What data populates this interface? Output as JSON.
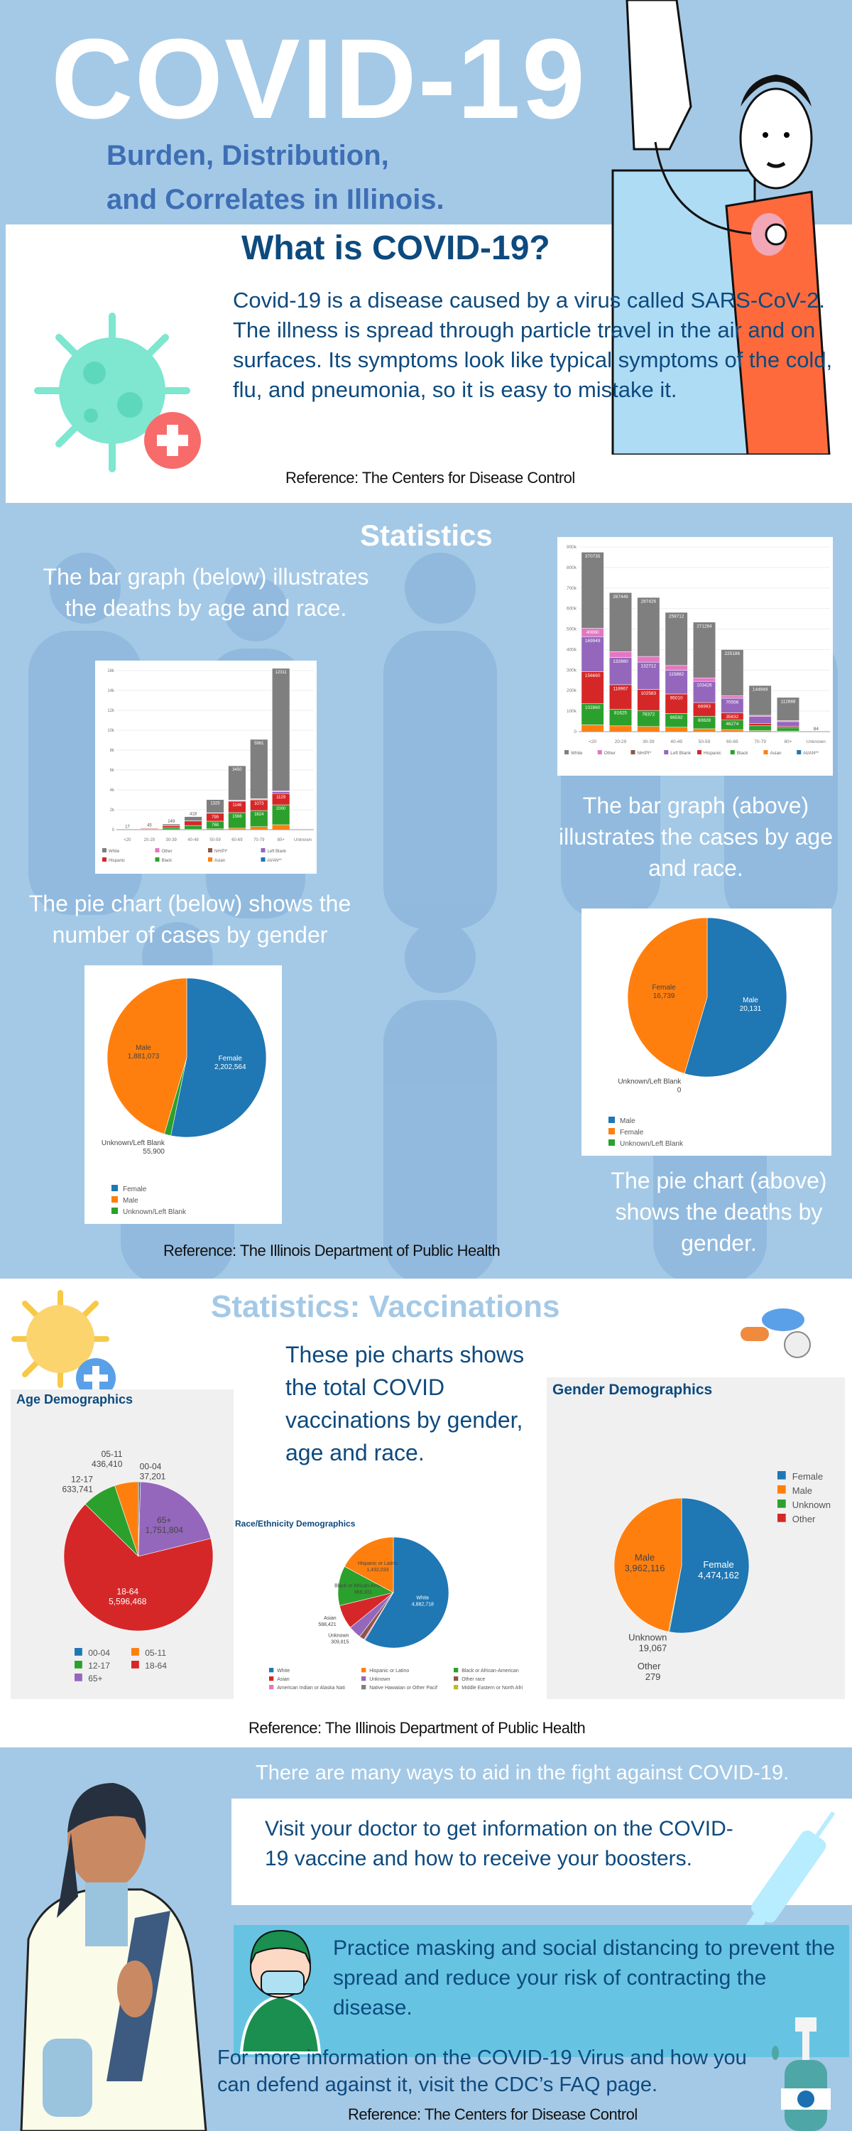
{
  "header": {
    "title": "COVID-19",
    "subtitle_lines": [
      "Burden, Distribution,",
      "and Correlates in Illinois."
    ]
  },
  "what": {
    "heading": "What is COVID-19?",
    "paragraph": "Covid-19 is a disease caused by a virus called SARS-CoV-2.  The illness is spread through particle travel in the air and on surfaces. Its symptoms look like typical symptoms of the cold, flu, and pneumonia, so it is easy to mistake it.",
    "reference": "Reference: The Centers for Disease Control"
  },
  "stats": {
    "heading": "Statistics",
    "deaths_bar_caption": "The bar graph (below) illustrates the deaths by age and race.",
    "cases_bar_caption": "The bar graph (above) illustrates the cases by age and race.",
    "cases_pie_caption": "The pie chart (below) shows the number of cases by gender",
    "deaths_pie_caption": "The pie chart (above) shows the deaths by gender.",
    "reference": "Reference: The Illinois Department of Public Health"
  },
  "vacc": {
    "heading": "Statistics: Vaccinations",
    "caption": "These pie charts shows the total COVID vaccinations by gender, age and race.",
    "reference": "Reference: The Illinois Department of Public Health"
  },
  "aid": {
    "intro": "There are many ways to aid in the fight against COVID-19.",
    "visit": "Visit your doctor to get information on the COVID-19 vaccine and how to receive your boosters.",
    "masking": "Practice masking and social distancing to prevent the spread and reduce your risk of contracting the disease.",
    "more_info": "For more information on the COVID-19 Virus and how you can defend against it, visit the CDC’s FAQ page.",
    "reference": "Reference: The Centers for Disease Control"
  },
  "colors": {
    "background": "#a4c9e6",
    "navy": "#0d4a7e",
    "subtitle_blue": "#3e6eb4",
    "cyan_box": "#66c4e2"
  },
  "icons": [
    "doctor-patient-illustration",
    "virus-icon",
    "people-silhouettes",
    "yellow-virus-icon",
    "pills-icon",
    "doctor-woman-illustration",
    "syringe-icon",
    "masked-nurse-icon",
    "hand-sanitizer-icon"
  ],
  "chart_data": [
    {
      "id": "cases_bar",
      "type": "bar",
      "stacked": true,
      "title": "",
      "categories": [
        "<20",
        "20-29",
        "30-39",
        "40-49",
        "50-59",
        "60-69",
        "70-79",
        "80+",
        "Unknown"
      ],
      "ylim": [
        0,
        900000
      ],
      "yticks": [
        "0",
        "100k",
        "200k",
        "300k",
        "400k",
        "500k",
        "600k",
        "700k",
        "800k",
        "900k"
      ],
      "grid": true,
      "legend": "bottom",
      "series": [
        {
          "name": "Asian",
          "color": "#ff7f0e",
          "values": [
            33209,
            28271,
            24915,
            21963,
            14000,
            10000,
            5000,
            3000,
            0
          ]
        },
        {
          "name": "Black",
          "color": "#2ca02c",
          "values": [
            102860,
            81625,
            78372,
            66592,
            60828,
            46274,
            23382,
            15000,
            0
          ]
        },
        {
          "name": "Hispanic",
          "color": "#d62728",
          "values": [
            156660,
            118967,
            102583,
            95010,
            66993,
            35832,
            12000,
            7000,
            0
          ]
        },
        {
          "name": "Left Blank",
          "color": "#9467bd",
          "values": [
            169949,
            132860,
            132712,
            115882,
            103426,
            70556,
            33356,
            23770,
            0
          ]
        },
        {
          "name": "Other",
          "color": "#e377c2",
          "values": [
            40860,
            28273,
            27887,
            23000,
            17000,
            12000,
            6000,
            5000,
            0
          ]
        },
        {
          "name": "White",
          "color": "#7f7f7f",
          "values": [
            370735,
            287449,
            287426,
            258712,
            271264,
            225186,
            144949,
            112888,
            84
          ]
        },
        {
          "name": "NH/PI*",
          "color": "#8c564b",
          "values": [
            0,
            0,
            0,
            0,
            0,
            0,
            0,
            0,
            0
          ]
        },
        {
          "name": "AI/AN**",
          "color": "#1f77b4",
          "values": [
            0,
            0,
            0,
            0,
            0,
            0,
            0,
            0,
            0
          ]
        }
      ],
      "legend_order": [
        "White",
        "Other",
        "NH/PI*",
        "Left Blank",
        "Hispanic",
        "Black",
        "Asian",
        "AI/AN**"
      ]
    },
    {
      "id": "deaths_bar",
      "type": "bar",
      "stacked": true,
      "title": "",
      "categories": [
        "<20",
        "20-29",
        "30-39",
        "40-49",
        "50-59",
        "60-69",
        "70-79",
        "80+",
        "Unknown"
      ],
      "ylim": [
        0,
        16000
      ],
      "yticks": [
        "0",
        "2k",
        "4k",
        "6k",
        "8k",
        "10k",
        "12k",
        "14k",
        "16k"
      ],
      "grid": true,
      "legend": "bottom",
      "series": [
        {
          "name": "Asian",
          "color": "#ff7f0e",
          "values": [
            0,
            5,
            20,
            40,
            90,
            150,
            300,
            497,
            0
          ]
        },
        {
          "name": "Black",
          "color": "#2ca02c",
          "values": [
            20,
            60,
            180,
            380,
            768,
            1566,
            1624,
            2000,
            0
          ]
        },
        {
          "name": "Hispanic",
          "color": "#d62728",
          "values": [
            15,
            60,
            200,
            451,
            799,
            1146,
            1073,
            1129,
            0
          ]
        },
        {
          "name": "Left Blank",
          "color": "#9467bd",
          "values": [
            0,
            0,
            5,
            10,
            20,
            50,
            70,
            200,
            0
          ]
        },
        {
          "name": "Other",
          "color": "#e377c2",
          "values": [
            0,
            0,
            5,
            10,
            20,
            60,
            50,
            80,
            0
          ]
        },
        {
          "name": "White",
          "color": "#7f7f7f",
          "values": [
            17,
            45,
            149,
            418,
            1325,
            3450,
            5961,
            12311,
            0
          ]
        },
        {
          "name": "NH/PI*",
          "color": "#8c564b",
          "values": [
            0,
            0,
            0,
            0,
            0,
            0,
            0,
            0,
            0
          ]
        },
        {
          "name": "AI/AN**",
          "color": "#1f77b4",
          "values": [
            0,
            0,
            0,
            0,
            0,
            0,
            0,
            0,
            0
          ]
        }
      ],
      "legend_order": [
        "White",
        "Other",
        "NH/PI*",
        "Left Blank",
        "Hispanic",
        "Black",
        "Asian",
        "AI/AN**"
      ]
    },
    {
      "id": "cases_pie",
      "type": "pie",
      "title": "",
      "slices": [
        {
          "label": "Female",
          "value": 2202564,
          "text": "2,202,564",
          "color": "#1f77b4"
        },
        {
          "label": "Unknown/Left Blank",
          "value": 55900,
          "text": "55,900",
          "color": "#2ca02c"
        },
        {
          "label": "Male",
          "value": 1881073,
          "text": "1,881,073",
          "color": "#ff7f0e"
        }
      ],
      "legend": [
        "Female",
        "Male",
        "Unknown/Left Blank"
      ]
    },
    {
      "id": "deaths_pie",
      "type": "pie",
      "title": "",
      "slices": [
        {
          "label": "Male",
          "value": 20131,
          "text": "20,131",
          "color": "#1f77b4"
        },
        {
          "label": "Unknown/Left Blank",
          "value": 0,
          "text": "0",
          "color": "#2ca02c"
        },
        {
          "label": "Female",
          "value": 16739,
          "text": "16,739",
          "color": "#ff7f0e"
        }
      ],
      "legend": [
        "Male",
        "Female",
        "Unknown/Left Blank"
      ]
    },
    {
      "id": "age_pie",
      "type": "pie",
      "title": "Age Demographics",
      "slices": [
        {
          "label": "00-04",
          "value": 37201,
          "text": "37,201",
          "color": "#1f77b4"
        },
        {
          "label": "65+",
          "value": 1751804,
          "text": "1,751,804",
          "color": "#9467bd"
        },
        {
          "label": "18-64",
          "value": 5596468,
          "text": "5,596,468",
          "color": "#d62728"
        },
        {
          "label": "12-17",
          "value": 633741,
          "text": "633,741",
          "color": "#2ca02c"
        },
        {
          "label": "05-11",
          "value": 436410,
          "text": "436,410",
          "color": "#ff7f0e"
        }
      ],
      "legend": [
        "00-04",
        "05-11",
        "12-17",
        "18-64",
        "65+"
      ]
    },
    {
      "id": "race_pie",
      "type": "pie",
      "title": "Race/Ethnicity Demographics",
      "slices": [
        {
          "label": "White",
          "value": 4882718,
          "text": "4,882,718",
          "color": "#1f77b4"
        },
        {
          "label": "American Indian or Alaska Nati",
          "value": 30000,
          "text": "",
          "color": "#e377c2"
        },
        {
          "label": "Other race",
          "value": 125000,
          "text": "",
          "color": "#8c564b"
        },
        {
          "label": "Unknown",
          "value": 309815,
          "text": "309,815",
          "color": "#9467bd"
        },
        {
          "label": "Asian",
          "value": 588421,
          "text": "588,421",
          "color": "#d62728"
        },
        {
          "label": "Black or African-American",
          "value": 968331,
          "text": "968,331",
          "color": "#2ca02c"
        },
        {
          "label": "Hispanic or Latino",
          "value": 1432033,
          "text": "1,432,033",
          "color": "#ff7f0e"
        }
      ],
      "legend": [
        "White",
        "Hispanic or Latino",
        "Black or African-American",
        "Asian",
        "Unknown",
        "Other race",
        "American Indian or Alaska Nati",
        "Native Hawaiian or Other Pacif",
        "Middle Eastern or North Afri"
      ],
      "legend_colors": [
        "#1f77b4",
        "#ff7f0e",
        "#2ca02c",
        "#d62728",
        "#9467bd",
        "#8c564b",
        "#e377c2",
        "#7f7f7f",
        "#bcbd22"
      ]
    },
    {
      "id": "gender_pie",
      "type": "pie",
      "title": "Gender Demographics",
      "slices": [
        {
          "label": "Female",
          "value": 4474162,
          "text": "4,474,162",
          "color": "#1f77b4"
        },
        {
          "label": "Unknown",
          "value": 19067,
          "text": "19,067",
          "color": "#2ca02c"
        },
        {
          "label": "Other",
          "value": 279,
          "text": "279",
          "color": "#d62728"
        },
        {
          "label": "Male",
          "value": 3962116,
          "text": "3,962,116",
          "color": "#ff7f0e"
        }
      ],
      "legend": [
        "Female",
        "Male",
        "Unknown",
        "Other"
      ],
      "legend_colors": [
        "#1f77b4",
        "#ff7f0e",
        "#2ca02c",
        "#d62728"
      ]
    }
  ]
}
